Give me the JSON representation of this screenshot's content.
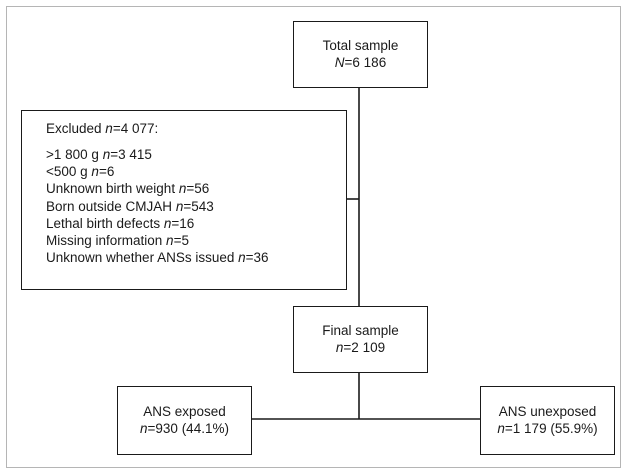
{
  "total": {
    "title": "Total sample",
    "var": "N",
    "value": "=6 186"
  },
  "excluded": {
    "head_prefix": "Excluded ",
    "head_var": "n",
    "head_value": "=4 077:",
    "items": [
      {
        "label": ">1 800 g ",
        "var": "n",
        "value": "=3 415"
      },
      {
        "label": "<500 g ",
        "var": "n",
        "value": "=6"
      },
      {
        "label": "Unknown birth weight ",
        "var": "n",
        "value": "=56"
      },
      {
        "label": "Born outside CMJAH ",
        "var": "n",
        "value": "=543"
      },
      {
        "label": "Lethal birth defects ",
        "var": "n",
        "value": "=16"
      },
      {
        "label": "Missing information ",
        "var": "n",
        "value": "=5"
      },
      {
        "label": "Unknown whether ANSs issued ",
        "var": "n",
        "value": "=36"
      }
    ]
  },
  "final": {
    "title": "Final sample",
    "var": "n",
    "value": "=2 109"
  },
  "exposed": {
    "title": "ANS exposed",
    "var": "n",
    "value": "=930 (44.1%)"
  },
  "unexposed": {
    "title": "ANS unexposed",
    "var": "n",
    "value": "=1 179 (55.9%)"
  }
}
